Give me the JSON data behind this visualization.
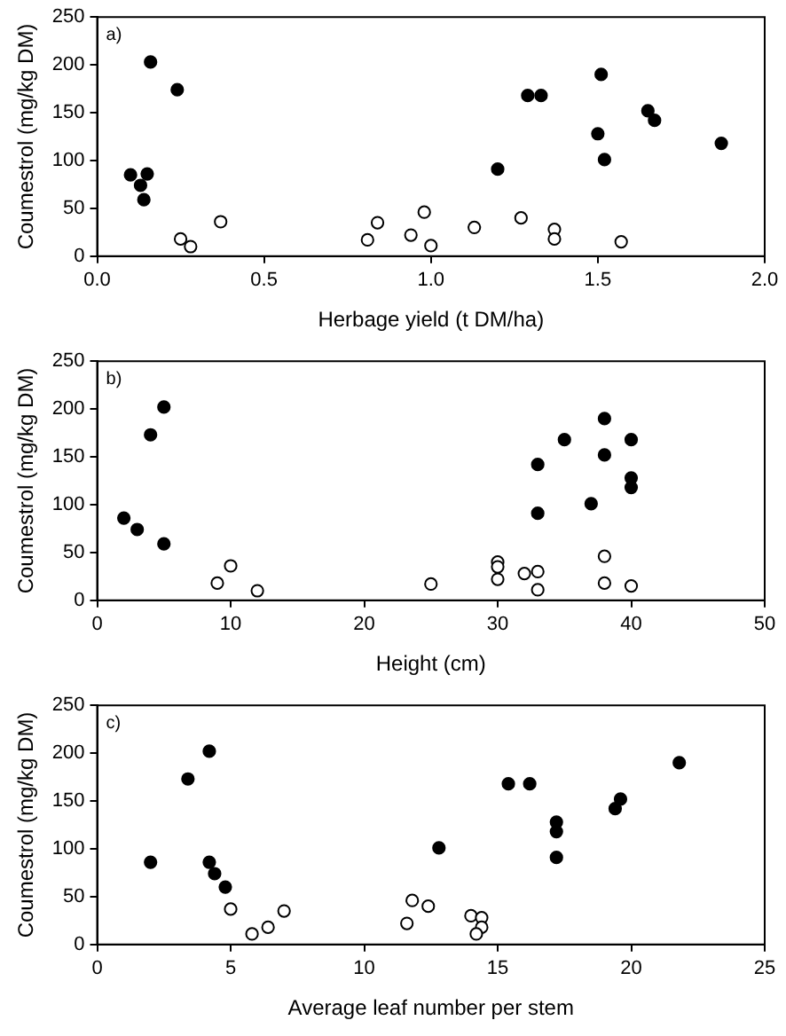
{
  "chart_data": [
    {
      "type": "scatter",
      "annotations": [
        "a)"
      ],
      "xlabel": "Herbage yield (t DM/ha)",
      "ylabel": "Coumestrol (mg/kg DM)",
      "xlim": [
        0,
        2
      ],
      "xticks": [
        {
          "value": 0,
          "label": "0.0"
        },
        {
          "value": 0.5,
          "label": "0.5"
        },
        {
          "value": 1,
          "label": "1.0"
        },
        {
          "value": 1.5,
          "label": "1.5"
        },
        {
          "value": 2,
          "label": "2.0"
        }
      ],
      "ylim": [
        0,
        250
      ],
      "yticks": [
        0,
        50,
        100,
        150,
        200,
        250
      ],
      "grid": false,
      "legend": false,
      "marker": "circle",
      "series": [
        {
          "color": "#000000",
          "x": [
            0.1,
            0.13,
            0.14,
            0.15,
            0.16,
            0.24,
            1.2,
            1.29,
            1.33,
            1.5,
            1.51,
            1.52,
            1.65,
            1.67,
            1.87
          ],
          "values": [
            85,
            74,
            59,
            86,
            203,
            174,
            91,
            168,
            168,
            128,
            190,
            101,
            152,
            142,
            118
          ]
        },
        {
          "color": "#ffffff",
          "x": [
            0.25,
            0.28,
            0.37,
            0.81,
            0.84,
            0.94,
            0.98,
            1.0,
            1.13,
            1.27,
            1.37,
            1.37,
            1.57
          ],
          "values": [
            18,
            10,
            36,
            17,
            35,
            22,
            46,
            11,
            30,
            40,
            28,
            18,
            15
          ]
        }
      ]
    },
    {
      "type": "scatter",
      "annotations": [
        "b)"
      ],
      "xlabel": "Height (cm)",
      "ylabel": "Coumestrol (mg/kg DM)",
      "xlim": [
        0,
        50
      ],
      "xticks": [
        0,
        10,
        20,
        30,
        40,
        50
      ],
      "ylim": [
        0,
        250
      ],
      "yticks": [
        0,
        50,
        100,
        150,
        200,
        250
      ],
      "grid": false,
      "legend": false,
      "marker": "circle",
      "series": [
        {
          "color": "#000000",
          "x": [
            2,
            3,
            4,
            5,
            5,
            33,
            33,
            35,
            37,
            38,
            38,
            40,
            40,
            40
          ],
          "values": [
            86,
            74,
            173,
            202,
            59,
            142,
            91,
            168,
            101,
            190,
            152,
            168,
            128,
            118
          ]
        },
        {
          "color": "#ffffff",
          "x": [
            9,
            10,
            12,
            25,
            30,
            30,
            30,
            32,
            33,
            33,
            38,
            38,
            40
          ],
          "values": [
            18,
            36,
            10,
            17,
            40,
            35,
            22,
            28,
            30,
            11,
            46,
            18,
            15
          ]
        }
      ]
    },
    {
      "type": "scatter",
      "annotations": [
        "c)"
      ],
      "xlabel": "Average leaf number per stem",
      "ylabel": "Coumestrol (mg/kg DM)",
      "xlim": [
        0,
        25
      ],
      "xticks": [
        0,
        5,
        10,
        15,
        20,
        25
      ],
      "ylim": [
        0,
        250
      ],
      "yticks": [
        0,
        50,
        100,
        150,
        200,
        250
      ],
      "grid": false,
      "legend": false,
      "marker": "circle",
      "series": [
        {
          "color": "#000000",
          "x": [
            2,
            3.4,
            4.2,
            4.2,
            4.4,
            4.8,
            12.8,
            15.4,
            16.2,
            17.2,
            17.2,
            17.2,
            19.4,
            19.6,
            21.8
          ],
          "values": [
            86,
            173,
            202,
            86,
            74,
            60,
            101,
            168,
            168,
            128,
            118,
            91,
            142,
            152,
            190
          ]
        },
        {
          "color": "#ffffff",
          "x": [
            5,
            5.8,
            6.4,
            7,
            11.6,
            11.8,
            12.4,
            14,
            14.4,
            14.4,
            14.2
          ],
          "values": [
            37,
            11,
            18,
            35,
            22,
            46,
            40,
            30,
            28,
            18,
            11
          ]
        }
      ]
    }
  ]
}
